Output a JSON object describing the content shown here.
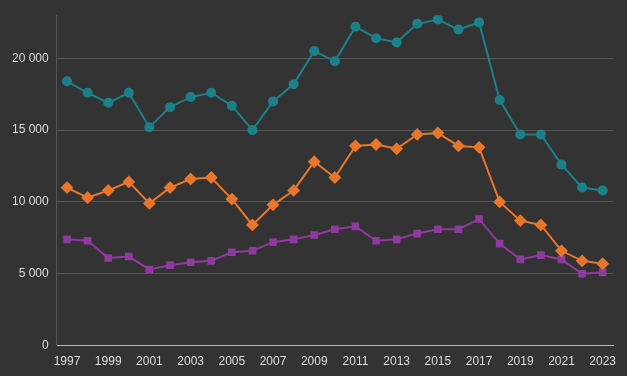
{
  "chart_data": {
    "type": "line",
    "categories": [
      "1997",
      null,
      "1999",
      null,
      "2001",
      null,
      "2003",
      null,
      "2005",
      null,
      "2007",
      null,
      "2009",
      null,
      "2011",
      null,
      "2013",
      null,
      "2015",
      null,
      "2017",
      null,
      "2019",
      null,
      "2021",
      null,
      "2023"
    ],
    "series": [
      {
        "color": "#1b8089",
        "marker": "circle",
        "line_style": "solid",
        "values": [
          18400,
          17600,
          16900,
          17600,
          15200,
          16600,
          17300,
          17600,
          16700,
          15000,
          17000,
          18200,
          20500,
          19800,
          22200,
          21400,
          21100,
          22400,
          22700,
          22000,
          22500,
          17100,
          14700,
          14700,
          12600,
          11000,
          10800
        ]
      },
      {
        "color": "#e8762b",
        "marker": "diamond",
        "line_style": "solid",
        "values": [
          11000,
          10300,
          10800,
          11400,
          9900,
          11000,
          11600,
          11700,
          10200,
          8400,
          9800,
          10800,
          12800,
          11700,
          13900,
          14000,
          13700,
          14700,
          14800,
          13900,
          13800,
          10000,
          8700,
          8400,
          6600,
          5900,
          5700
        ]
      },
      {
        "color": "#8e3a9e",
        "marker": "square",
        "line_style": "solid",
        "values": [
          7400,
          7300,
          6100,
          6200,
          5300,
          5600,
          5800,
          5900,
          6500,
          6600,
          7200,
          7400,
          7700,
          8100,
          8300,
          7300,
          7400,
          7800,
          8100,
          8100,
          8800,
          7100,
          6000,
          6300,
          6000,
          5000,
          5100
        ]
      }
    ],
    "ylim": [
      0,
      23000
    ],
    "yticks": [
      0,
      {
        "value": 5000,
        "label": "5 000"
      },
      {
        "value": 10000,
        "label": "10 000"
      },
      {
        "value": 15000,
        "label": "15 000"
      },
      {
        "value": 20000,
        "label": "20 000"
      }
    ],
    "grid": true
  }
}
